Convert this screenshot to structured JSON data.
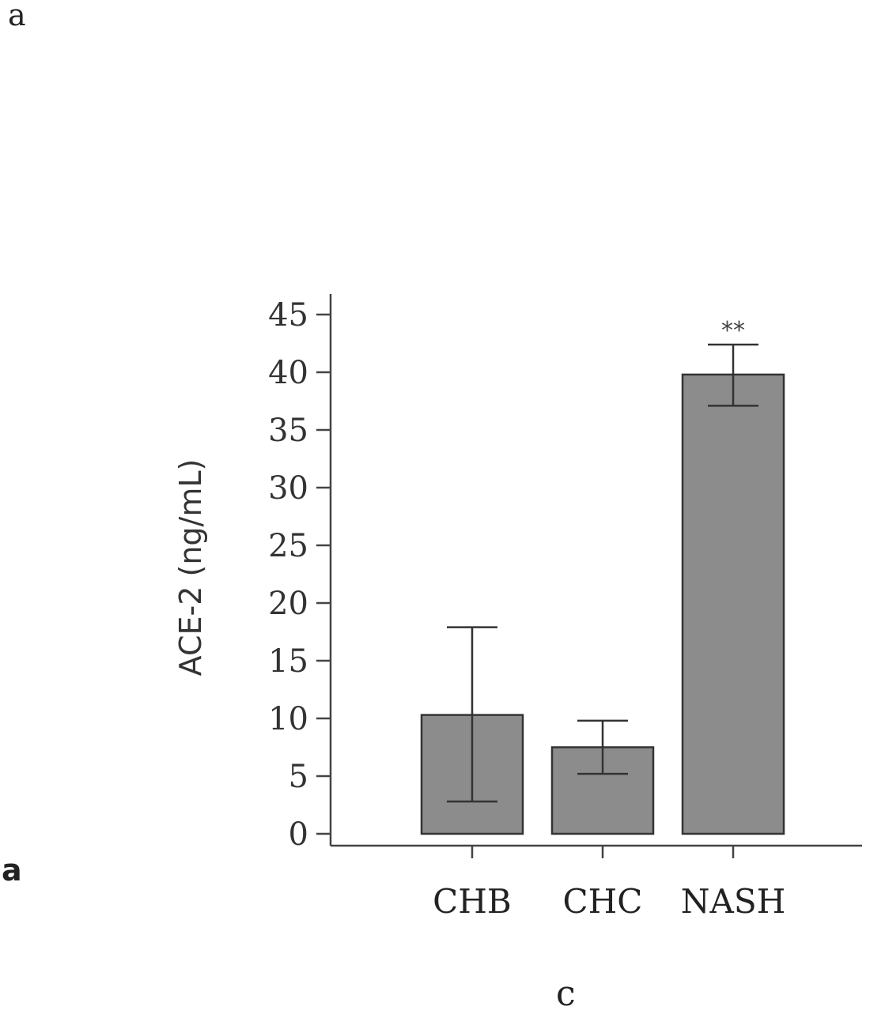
{
  "panel_labels": {
    "top": "a",
    "middle": "a",
    "bottom": "c"
  },
  "chart_data": {
    "type": "bar",
    "categories": [
      "CHB",
      "CHC",
      "NASH"
    ],
    "values": [
      10.3,
      7.5,
      39.8
    ],
    "error_low": [
      2.8,
      5.2,
      37.1
    ],
    "error_high": [
      17.9,
      9.8,
      42.4
    ],
    "annotations": [
      "",
      "",
      "**"
    ],
    "ylabel": "ACE-2 (ng/mL)",
    "xlabel": "",
    "ylim": [
      0,
      45
    ],
    "yticks": [
      0,
      5,
      10,
      15,
      20,
      25,
      30,
      35,
      40,
      45
    ],
    "grid": false,
    "bar_color": "#8c8c8c",
    "bar_edge_color": "#333333"
  }
}
